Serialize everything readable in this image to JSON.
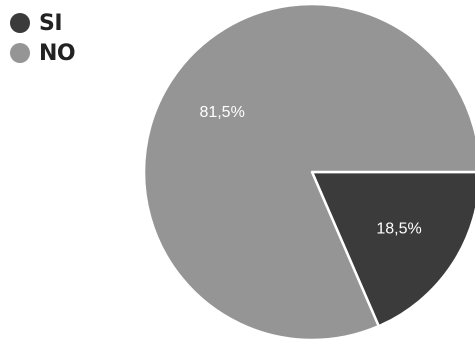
{
  "chart_data": {
    "type": "pie",
    "title": "",
    "slices": [
      {
        "label": "SI",
        "value": 18.5,
        "display": "18,5%",
        "color": "#3b3b3b"
      },
      {
        "label": "NO",
        "value": 81.5,
        "display": "81,5%",
        "color": "#959595"
      }
    ],
    "legend_position": "top-left",
    "start_angle_deg": 0,
    "direction": "clockwise"
  }
}
